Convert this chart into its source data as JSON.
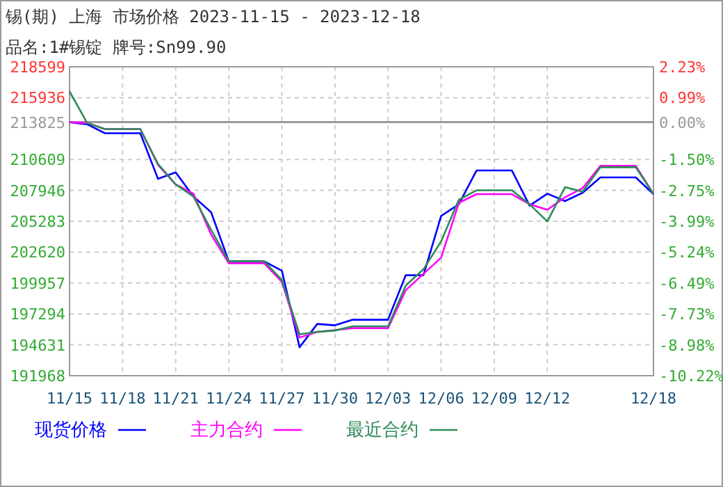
{
  "chart_data": {
    "type": "line",
    "title": "锡(期) 上海 市场价格 2023-11-15 - 2023-12-18",
    "subtitle": "品名:1#锡锭 牌号:Sn99.90",
    "x": [
      "2023-11-15",
      "2023-11-16",
      "2023-11-17",
      "2023-11-18",
      "2023-11-19",
      "2023-11-20",
      "2023-11-21",
      "2023-11-22",
      "2023-11-23",
      "2023-11-24",
      "2023-11-25",
      "2023-11-26",
      "2023-11-27",
      "2023-11-28",
      "2023-11-29",
      "2023-11-30",
      "2023-12-01",
      "2023-12-02",
      "2023-12-03",
      "2023-12-04",
      "2023-12-05",
      "2023-12-06",
      "2023-12-07",
      "2023-12-08",
      "2023-12-09",
      "2023-12-10",
      "2023-12-11",
      "2023-12-12",
      "2023-12-13",
      "2023-12-14",
      "2023-12-15",
      "2023-12-16",
      "2023-12-17",
      "2023-12-18"
    ],
    "series": [
      {
        "name": "现货价格",
        "color": "#0000ff",
        "values": [
          213825,
          213640,
          212870,
          212870,
          212870,
          208940,
          209500,
          207420,
          206060,
          201830,
          201830,
          201830,
          201020,
          194420,
          196430,
          196310,
          196790,
          196790,
          196790,
          200630,
          200630,
          205740,
          206750,
          209660,
          209660,
          209660,
          206630,
          207660,
          207020,
          207740,
          209060,
          209060,
          209060,
          207620
        ]
      },
      {
        "name": "主力合约",
        "color": "#ff00ff",
        "values": [
          213825,
          213750,
          213230,
          213230,
          213230,
          210140,
          208460,
          207660,
          204140,
          201660,
          201660,
          201660,
          200060,
          195260,
          195740,
          195900,
          196070,
          196070,
          196070,
          199340,
          200750,
          202140,
          206870,
          207620,
          207620,
          207620,
          206750,
          206270,
          207350,
          208140,
          210060,
          210060,
          210060,
          207620
        ]
      },
      {
        "name": "最近合约",
        "color": "#2e8b57",
        "values": [
          216470,
          213750,
          213230,
          213230,
          213230,
          210220,
          208460,
          207420,
          204540,
          201830,
          201830,
          201830,
          200220,
          195540,
          195740,
          195860,
          196230,
          196230,
          196230,
          199740,
          201140,
          203540,
          207140,
          207950,
          207950,
          207950,
          206750,
          205260,
          208220,
          207830,
          209940,
          209940,
          209940,
          207620
        ]
      }
    ],
    "xlim": [
      "2023-11-15",
      "2023-12-18"
    ],
    "xticks": [
      {
        "value": "2023-11-15",
        "label": "11/15"
      },
      {
        "value": "2023-11-18",
        "label": "11/18"
      },
      {
        "value": "2023-11-21",
        "label": "11/21"
      },
      {
        "value": "2023-11-24",
        "label": "11/24"
      },
      {
        "value": "2023-11-27",
        "label": "11/27"
      },
      {
        "value": "2023-11-30",
        "label": "11/30"
      },
      {
        "value": "2023-12-03",
        "label": "12/03"
      },
      {
        "value": "2023-12-06",
        "label": "12/06"
      },
      {
        "value": "2023-12-09",
        "label": "12/09"
      },
      {
        "value": "2023-12-12",
        "label": "12/12"
      },
      {
        "value": "2023-12-18",
        "label": "12/18"
      }
    ],
    "ylim": [
      191968,
      218599
    ],
    "yticks": [
      191968,
      194631,
      197294,
      199957,
      202620,
      205283,
      207946,
      210609,
      213825,
      215936,
      218599
    ],
    "y2lim": [
      -10.22,
      2.23
    ],
    "y2ticks": [
      {
        "value": -10.22,
        "label": "-10.22%"
      },
      {
        "value": -8.98,
        "label": "-8.98%"
      },
      {
        "value": -7.73,
        "label": "-7.73%"
      },
      {
        "value": -6.49,
        "label": "-6.49%"
      },
      {
        "value": -5.24,
        "label": "-5.24%"
      },
      {
        "value": -3.99,
        "label": "-3.99%"
      },
      {
        "value": -2.75,
        "label": "-2.75%"
      },
      {
        "value": -1.5,
        "label": "-1.50%"
      },
      {
        "value": 0,
        "label": "0.00%"
      },
      {
        "value": 0.99,
        "label": "0.99%"
      },
      {
        "value": 2.23,
        "label": "2.23%"
      }
    ],
    "ref_lines": [
      {
        "axis": "y",
        "value": 213825,
        "color": "#999999",
        "line_style": "solid"
      }
    ],
    "grid": true,
    "legend": "bottom",
    "line_style": "solid"
  }
}
